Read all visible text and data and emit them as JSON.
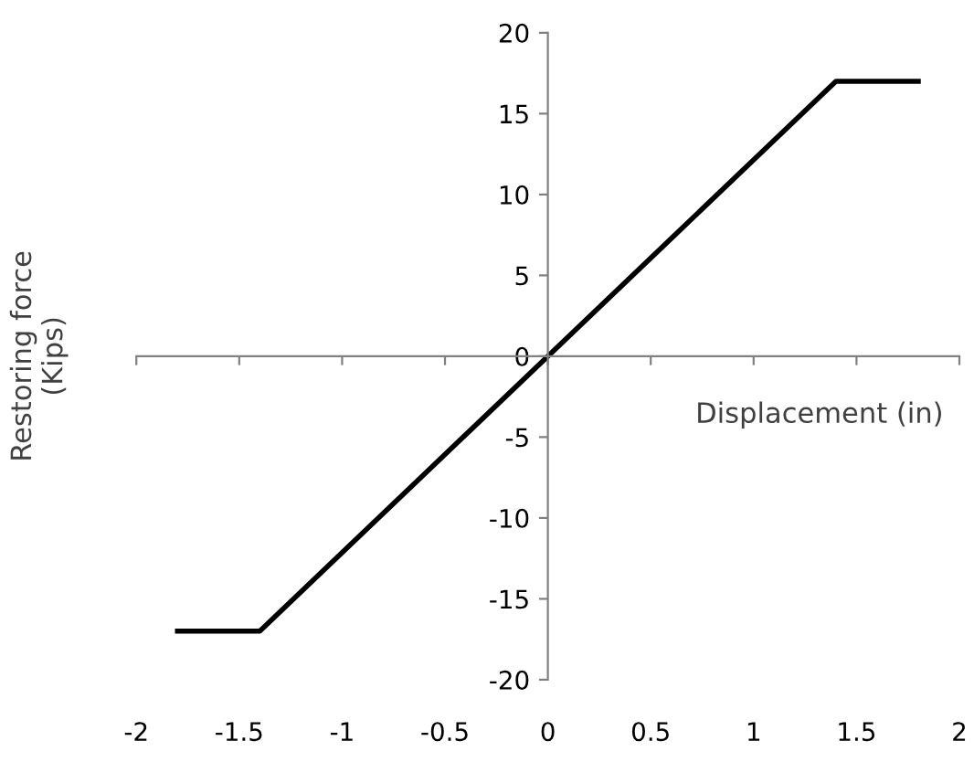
{
  "chart_data": {
    "type": "line",
    "xlabel": "Displacement (in)",
    "ylabel": "Restoring force\n(Kips)",
    "series": [
      {
        "color": "#000000",
        "x": [
          -1.8,
          -1.4,
          1.4,
          1.8
        ],
        "values": [
          -17,
          -17,
          17,
          17
        ]
      }
    ],
    "xlim": [
      -2,
      2
    ],
    "ylim": [
      -20,
      20
    ],
    "xticks": [
      -2,
      -1.5,
      -1,
      -0.5,
      0,
      0.5,
      1,
      1.5,
      2
    ],
    "yticks": [
      -20,
      -15,
      -10,
      -5,
      0,
      5,
      10,
      15,
      20
    ],
    "legend": false,
    "marker": "none",
    "line_style": "solid"
  }
}
